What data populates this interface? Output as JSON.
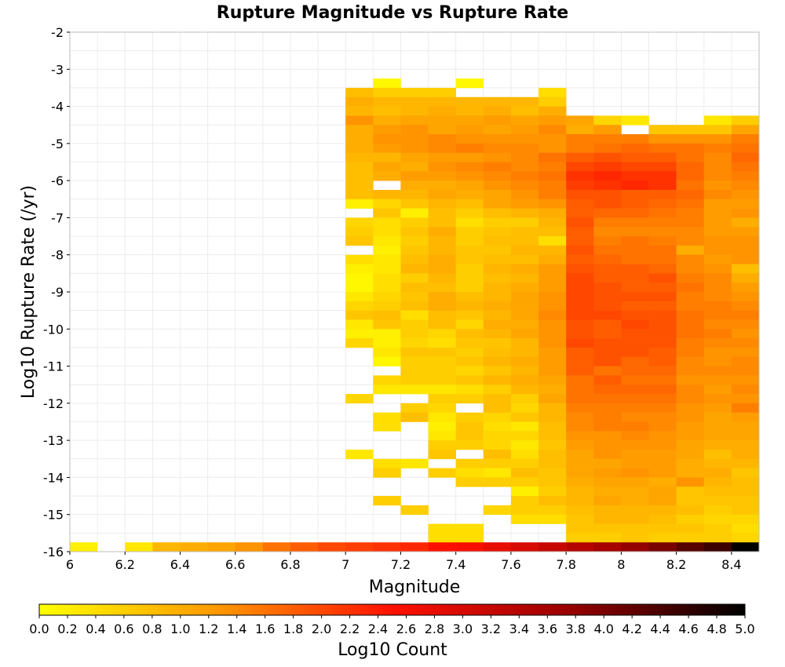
{
  "chart_data": {
    "type": "heatmap",
    "title": "Rupture Magnitude vs Rupture Rate",
    "xlabel": "Magnitude",
    "ylabel": "Log10 Rupture Rate (/yr)",
    "xlim": [
      6.0,
      8.5
    ],
    "ylim": [
      -16,
      -2
    ],
    "x_ticks": [
      6,
      6.2,
      6.4,
      6.6,
      6.8,
      7,
      7.2,
      7.4,
      7.6,
      7.8,
      8,
      8.2,
      8.4
    ],
    "x_tick_labels": [
      "6",
      "6.2",
      "6.4",
      "6.6",
      "6.8",
      "7",
      "7.2",
      "7.4",
      "7.6",
      "7.8",
      "8",
      "8.2",
      "8.4"
    ],
    "y_ticks": [
      -2,
      -3,
      -4,
      -5,
      -6,
      -7,
      -8,
      -9,
      -10,
      -11,
      -12,
      -13,
      -14,
      -15,
      -16
    ],
    "y_tick_labels": [
      "-2",
      "-3",
      "-4",
      "-5",
      "-6",
      "-7",
      "-8",
      "-9",
      "-10",
      "-11",
      "-12",
      "-13",
      "-14",
      "-15",
      "-16"
    ],
    "x_bin_width": 0.1,
    "y_bin_width": 0.25,
    "x_bin_starts": [
      7.0,
      7.1,
      7.2,
      7.3,
      7.4,
      7.5,
      7.6,
      7.7,
      7.8,
      7.9,
      8.0,
      8.1,
      8.2,
      8.3,
      8.4
    ],
    "y_bin_starts_top_down": [
      -3.5,
      -3.75,
      -4.0,
      -4.25,
      -4.5,
      -4.75,
      -5.0,
      -5.25,
      -5.5,
      -5.75,
      -6.0,
      -6.25,
      -6.5,
      -6.75,
      -7.0,
      -7.25,
      -7.5,
      -7.75,
      -8.0,
      -8.25,
      -8.5,
      -8.75,
      -9.0,
      -9.25,
      -9.5,
      -9.75,
      -10.0,
      -10.25,
      -10.5,
      -10.75,
      -11.0,
      -11.25,
      -11.5,
      -11.75,
      -12.0,
      -12.25,
      -12.5,
      -12.75,
      -13.0,
      -13.25,
      -13.5,
      -13.75,
      -14.0,
      -14.25,
      -14.5,
      -14.75,
      -15.0,
      -15.25,
      -15.5,
      -15.75
    ],
    "log10_count_grid": [
      [
        null,
        0.1,
        null,
        null,
        0.1,
        null,
        null,
        null,
        null,
        null,
        null,
        null,
        null,
        null,
        null
      ],
      [
        0.8,
        0.6,
        0.6,
        0.6,
        null,
        null,
        null,
        0.4,
        null,
        null,
        null,
        null,
        null,
        null,
        null
      ],
      [
        1.0,
        0.9,
        0.9,
        0.9,
        0.9,
        0.9,
        0.9,
        0.6,
        null,
        null,
        null,
        null,
        null,
        null,
        null
      ],
      [
        0.9,
        0.8,
        0.9,
        1.0,
        0.9,
        1.0,
        0.8,
        1.0,
        null,
        null,
        null,
        null,
        null,
        null,
        null
      ],
      [
        1.3,
        1.0,
        1.1,
        1.1,
        1.1,
        1.2,
        1.1,
        1.2,
        1.1,
        0.5,
        0.3,
        null,
        null,
        0.3,
        0.6
      ],
      [
        1.0,
        1.2,
        1.3,
        1.1,
        1.2,
        1.1,
        1.2,
        1.4,
        1.0,
        1.2,
        null,
        0.7,
        0.7,
        0.7,
        1.1
      ],
      [
        1.0,
        1.3,
        1.3,
        1.4,
        1.3,
        1.3,
        1.3,
        1.3,
        1.5,
        1.5,
        1.5,
        1.3,
        1.3,
        1.3,
        1.5
      ],
      [
        1.0,
        1.2,
        1.3,
        1.4,
        1.5,
        1.4,
        1.4,
        1.3,
        1.5,
        1.6,
        1.7,
        1.6,
        1.6,
        1.5,
        1.6
      ],
      [
        0.9,
        0.9,
        1.1,
        1.2,
        1.2,
        1.3,
        1.4,
        1.6,
        1.8,
        1.9,
        1.8,
        1.8,
        1.6,
        1.4,
        1.7
      ],
      [
        0.8,
        1.1,
        1.0,
        1.3,
        1.4,
        1.5,
        1.4,
        1.5,
        2.0,
        2.1,
        2.0,
        2.0,
        1.7,
        1.4,
        1.6
      ],
      [
        0.8,
        1.0,
        1.2,
        1.2,
        1.3,
        1.4,
        1.5,
        1.6,
        2.2,
        2.3,
        2.2,
        2.2,
        1.7,
        1.4,
        1.5
      ],
      [
        0.8,
        null,
        1.0,
        1.0,
        1.1,
        1.3,
        1.4,
        1.5,
        2.1,
        2.2,
        2.3,
        2.2,
        1.6,
        1.3,
        1.4
      ],
      [
        0.8,
        0.9,
        0.9,
        1.1,
        1.0,
        1.1,
        1.3,
        1.5,
        1.9,
        1.9,
        1.8,
        1.8,
        1.7,
        1.4,
        1.3
      ],
      [
        0.2,
        0.5,
        0.7,
        0.9,
        0.8,
        1.1,
        1.2,
        1.3,
        1.8,
        1.9,
        1.8,
        1.7,
        1.6,
        1.2,
        1.2
      ],
      [
        null,
        0.7,
        0.2,
        0.8,
        0.6,
        0.8,
        0.9,
        1.0,
        1.8,
        1.7,
        1.7,
        1.6,
        1.5,
        1.2,
        1.3
      ],
      [
        0.5,
        0.4,
        0.6,
        0.8,
        0.4,
        0.6,
        0.6,
        0.9,
        1.9,
        1.5,
        1.5,
        1.5,
        1.5,
        1.2,
        1.0
      ],
      [
        0.6,
        0.4,
        0.7,
        1.0,
        0.6,
        0.7,
        0.8,
        0.8,
        1.8,
        1.4,
        1.4,
        1.4,
        1.4,
        1.2,
        1.2
      ],
      [
        0.7,
        0.3,
        0.6,
        0.9,
        0.6,
        0.8,
        0.8,
        0.4,
        1.8,
        1.5,
        1.6,
        1.5,
        1.4,
        1.3,
        1.3
      ],
      [
        null,
        0.2,
        0.7,
        0.9,
        0.7,
        0.7,
        0.9,
        0.9,
        1.9,
        1.6,
        1.6,
        1.6,
        1.0,
        1.3,
        1.3
      ],
      [
        0.4,
        0.3,
        0.8,
        1.0,
        0.7,
        0.8,
        0.8,
        1.0,
        1.8,
        1.7,
        1.6,
        1.6,
        1.4,
        1.2,
        1.3
      ],
      [
        0.2,
        0.3,
        0.9,
        1.0,
        0.6,
        0.9,
        1.0,
        1.2,
        1.9,
        1.8,
        1.8,
        1.7,
        1.4,
        1.3,
        0.8
      ],
      [
        0.1,
        0.4,
        0.6,
        0.9,
        0.6,
        0.8,
        0.9,
        1.2,
        2.0,
        1.8,
        1.8,
        1.9,
        1.5,
        1.4,
        1.0
      ],
      [
        0.1,
        0.4,
        0.8,
        0.8,
        0.6,
        0.9,
        1.0,
        1.2,
        2.0,
        1.9,
        1.8,
        1.8,
        1.6,
        1.4,
        1.2
      ],
      [
        0.3,
        0.5,
        0.7,
        1.0,
        0.8,
        0.9,
        1.1,
        1.3,
        2.0,
        1.9,
        1.9,
        1.9,
        1.5,
        1.4,
        1.3
      ],
      [
        0.5,
        0.6,
        0.8,
        1.0,
        0.9,
        1.0,
        1.1,
        1.3,
        2.0,
        1.9,
        1.8,
        1.8,
        1.5,
        1.5,
        1.4
      ],
      [
        0.7,
        0.8,
        0.4,
        0.8,
        0.7,
        0.9,
        1.1,
        1.4,
        2.0,
        2.0,
        1.9,
        1.9,
        1.6,
        1.5,
        1.5
      ],
      [
        0.3,
        0.7,
        0.6,
        0.8,
        0.5,
        1.0,
        1.0,
        1.3,
        1.9,
        1.8,
        2.0,
        1.9,
        1.6,
        1.4,
        1.4
      ],
      [
        0.2,
        0.2,
        0.6,
        0.5,
        0.8,
        0.9,
        1.1,
        1.3,
        1.9,
        1.8,
        1.9,
        1.9,
        1.6,
        1.5,
        1.3
      ],
      [
        0.5,
        0.2,
        0.5,
        0.4,
        0.7,
        0.7,
        0.9,
        1.3,
        2.0,
        1.9,
        1.9,
        1.9,
        1.5,
        1.4,
        1.4
      ],
      [
        null,
        0.3,
        0.7,
        0.7,
        0.6,
        0.8,
        0.9,
        1.2,
        1.8,
        1.9,
        1.9,
        1.8,
        1.5,
        1.3,
        1.3
      ],
      [
        null,
        0.1,
        0.6,
        0.6,
        0.7,
        0.9,
        1.0,
        1.2,
        1.8,
        1.9,
        1.7,
        1.8,
        1.4,
        1.3,
        1.4
      ],
      [
        null,
        null,
        0.6,
        0.6,
        0.5,
        0.7,
        0.9,
        1.2,
        1.8,
        1.6,
        1.7,
        1.7,
        1.4,
        1.4,
        1.4
      ],
      [
        null,
        0.5,
        0.6,
        0.6,
        0.7,
        0.9,
        1.0,
        1.1,
        1.6,
        1.8,
        1.6,
        1.6,
        1.3,
        1.3,
        1.3
      ],
      [
        null,
        0.3,
        0.3,
        0.3,
        0.4,
        0.6,
        0.9,
        1.0,
        1.6,
        1.7,
        1.7,
        1.7,
        1.4,
        1.2,
        1.4
      ],
      [
        0.5,
        null,
        null,
        0.6,
        0.6,
        0.8,
        0.6,
        1.1,
        1.6,
        1.6,
        1.6,
        1.6,
        1.4,
        1.3,
        1.3
      ],
      [
        null,
        null,
        0.6,
        0.5,
        null,
        0.8,
        0.5,
        0.9,
        1.5,
        1.5,
        1.5,
        1.5,
        1.3,
        1.2,
        1.5
      ],
      [
        null,
        0.4,
        0.8,
        0.3,
        0.6,
        0.5,
        0.7,
        0.9,
        1.4,
        1.5,
        1.4,
        1.4,
        1.3,
        1.1,
        1.2
      ],
      [
        null,
        0.4,
        null,
        0.2,
        0.7,
        0.4,
        0.3,
        0.8,
        1.4,
        1.5,
        1.5,
        1.4,
        1.2,
        1.1,
        1.1
      ],
      [
        null,
        null,
        null,
        0.3,
        0.7,
        0.5,
        0.5,
        0.8,
        1.3,
        1.3,
        1.4,
        1.3,
        1.2,
        1.1,
        1.1
      ],
      [
        null,
        null,
        null,
        0.6,
        0.6,
        0.5,
        0.3,
        0.7,
        1.2,
        1.3,
        1.3,
        1.3,
        1.1,
        1.0,
        1.0
      ],
      [
        0.3,
        null,
        null,
        0.7,
        null,
        0.8,
        0.4,
        0.8,
        1.1,
        1.3,
        1.2,
        1.2,
        1.1,
        0.8,
        1.0
      ],
      [
        null,
        0.4,
        0.3,
        null,
        0.6,
        0.6,
        0.6,
        0.8,
        1.1,
        1.1,
        1.2,
        1.2,
        1.0,
        0.9,
        0.9
      ],
      [
        null,
        0.6,
        null,
        0.6,
        0.4,
        0.3,
        0.8,
        0.7,
        1.1,
        1.2,
        1.3,
        1.2,
        1.0,
        1.0,
        0.7
      ],
      [
        null,
        null,
        null,
        null,
        0.6,
        0.6,
        0.6,
        0.7,
        1.0,
        1.1,
        1.1,
        1.0,
        1.3,
        0.9,
        0.8
      ],
      [
        null,
        null,
        null,
        null,
        null,
        null,
        0.2,
        0.6,
        0.9,
        1.0,
        1.0,
        1.1,
        0.7,
        0.8,
        0.8
      ],
      [
        null,
        0.6,
        null,
        null,
        null,
        null,
        0.6,
        0.8,
        0.9,
        1.1,
        1.0,
        1.1,
        0.7,
        0.7,
        0.7
      ],
      [
        null,
        null,
        0.6,
        null,
        null,
        0.5,
        0.6,
        0.6,
        0.8,
        0.9,
        0.9,
        0.9,
        0.8,
        0.6,
        0.7
      ],
      [
        null,
        null,
        null,
        null,
        null,
        null,
        0.4,
        0.4,
        0.7,
        0.9,
        0.9,
        0.8,
        0.6,
        0.5,
        0.5
      ],
      [
        null,
        null,
        null,
        0.4,
        0.4,
        null,
        null,
        null,
        0.7,
        0.7,
        0.7,
        0.7,
        0.7,
        0.6,
        0.4
      ],
      [
        null,
        null,
        null,
        0.4,
        0.4,
        null,
        null,
        null,
        0.6,
        0.6,
        0.7,
        0.6,
        0.6,
        0.6,
        0.5
      ]
    ],
    "bottom_row": {
      "y_bin_start": -16.0,
      "x_bin_starts": [
        6.0,
        6.1,
        6.2,
        6.3,
        6.4,
        6.5,
        6.6,
        6.7,
        6.8,
        6.9,
        7.0,
        7.1,
        7.2,
        7.3,
        7.4,
        7.5,
        7.6,
        7.7,
        7.8,
        7.9,
        8.0,
        8.1,
        8.2,
        8.3,
        8.4
      ],
      "log10_count": [
        0.2,
        null,
        0.3,
        0.9,
        1.0,
        1.1,
        1.3,
        1.6,
        1.8,
        2.0,
        2.1,
        2.2,
        2.3,
        2.5,
        2.6,
        2.8,
        3.0,
        3.2,
        3.4,
        3.6,
        3.8,
        4.0,
        4.3,
        4.5,
        5.0
      ]
    },
    "colorscale": {
      "label": "Log10 Count",
      "min": 0.0,
      "max": 5.0,
      "ticks": [
        0.0,
        0.2,
        0.4,
        0.6,
        0.8,
        1.0,
        1.2,
        1.4,
        1.6,
        1.8,
        2.0,
        2.2,
        2.4,
        2.6,
        2.8,
        3.0,
        3.2,
        3.4,
        3.6,
        3.8,
        4.0,
        4.2,
        4.4,
        4.6,
        4.8,
        5.0
      ],
      "tick_labels": [
        "0.0",
        "0.2",
        "0.4",
        "0.6",
        "0.8",
        "1.0",
        "1.2",
        "1.4",
        "1.6",
        "1.8",
        "2.0",
        "2.2",
        "2.4",
        "2.6",
        "2.8",
        "3.0",
        "3.2",
        "3.4",
        "3.6",
        "3.8",
        "4.0",
        "4.2",
        "4.4",
        "4.6",
        "4.8",
        "5.0"
      ],
      "colors": [
        "#ffff00",
        "#ff9900",
        "#ff1100",
        "#990000",
        "#000000"
      ],
      "placement": "bottom"
    },
    "grid": true
  }
}
